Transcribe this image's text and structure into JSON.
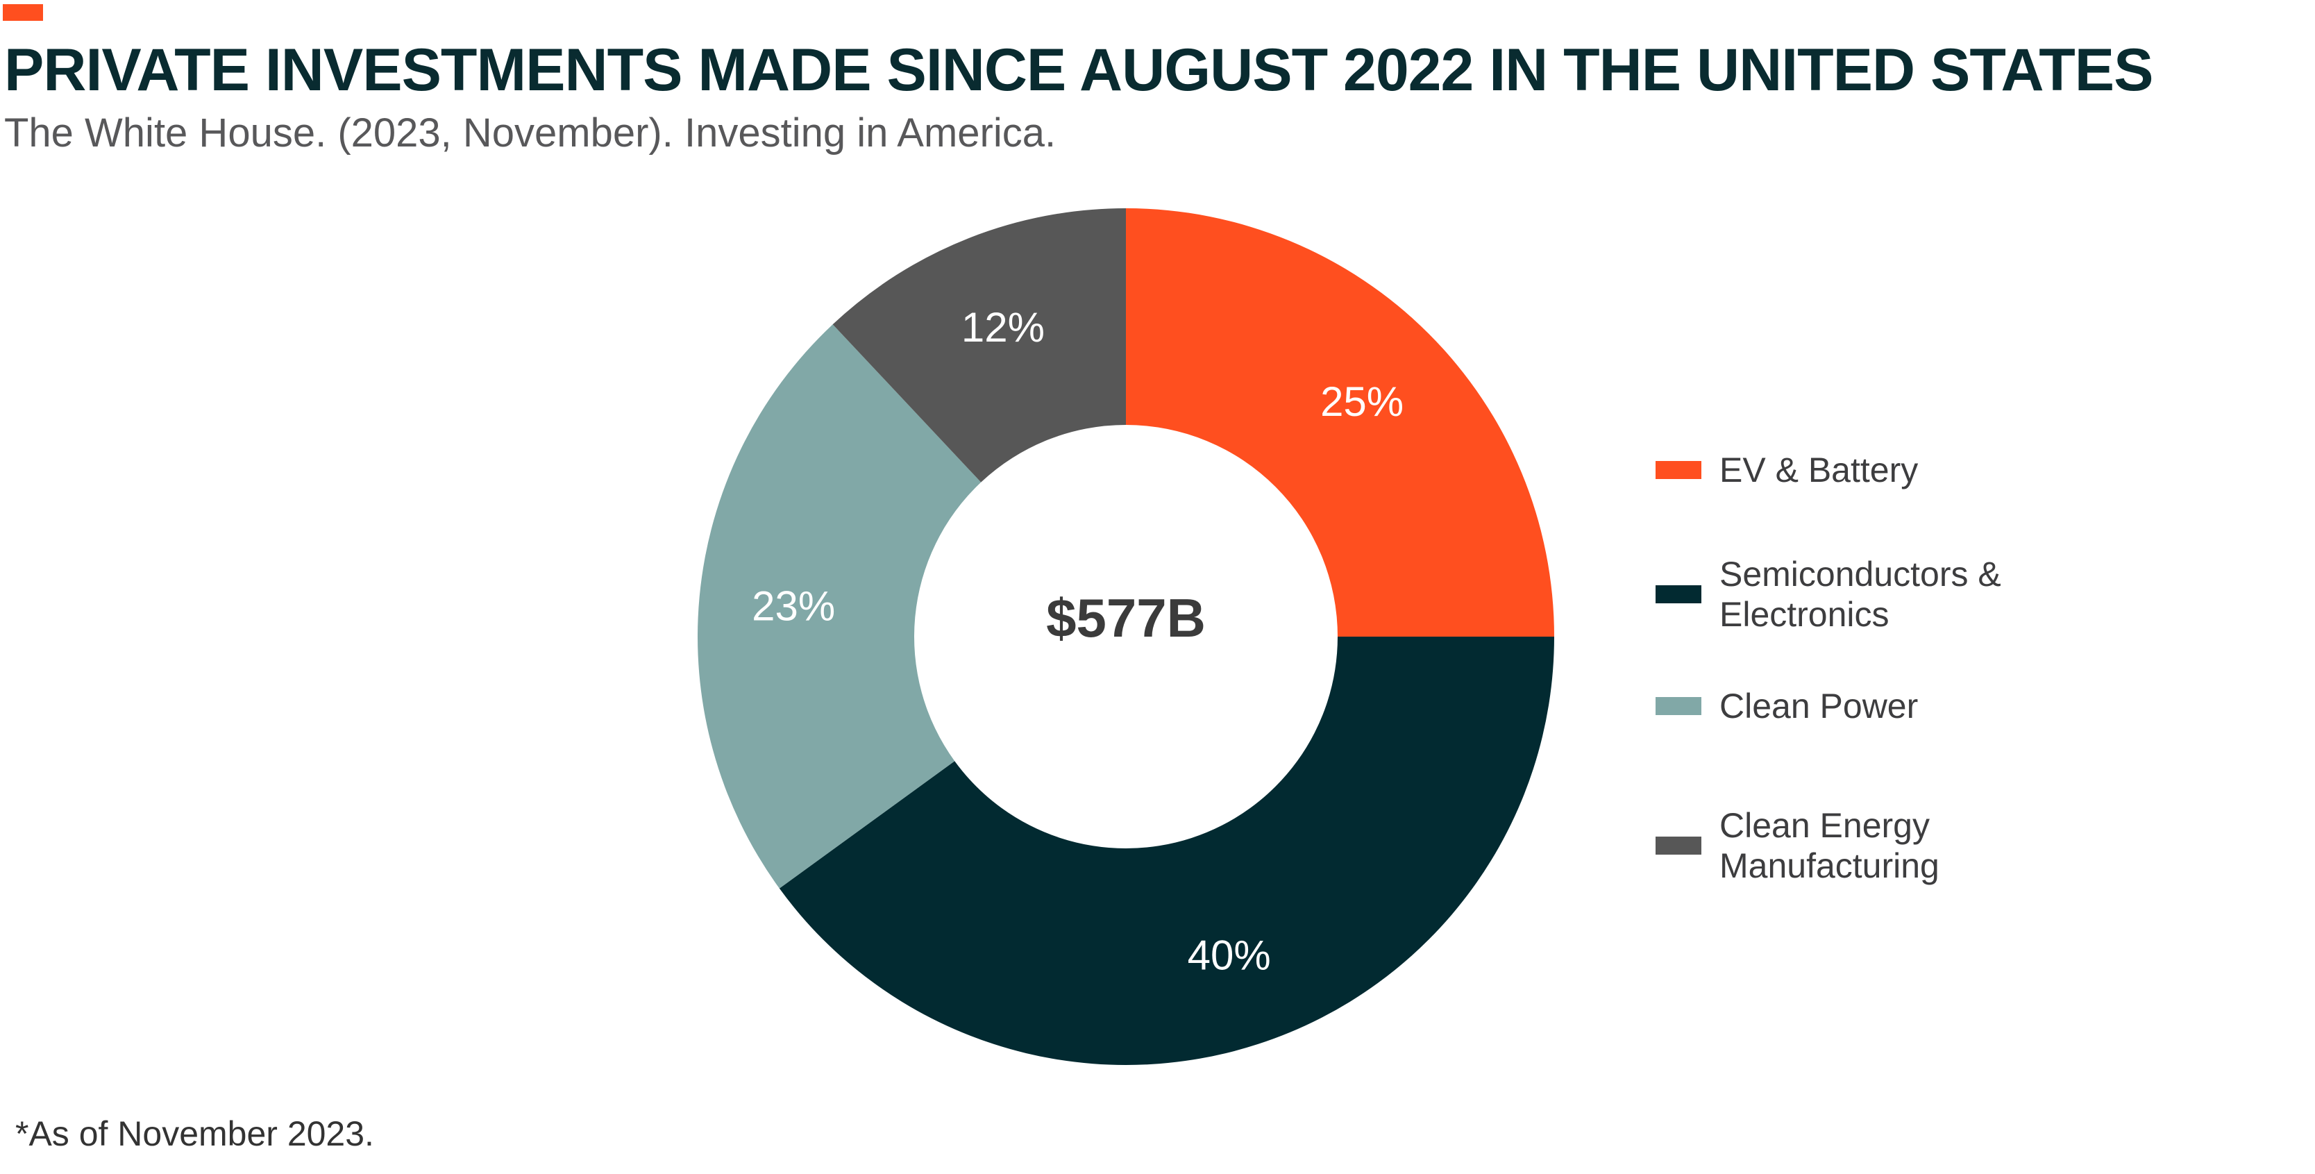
{
  "header": {
    "title": "PRIVATE INVESTMENTS MADE SINCE AUGUST 2022 IN THE UNITED STATES",
    "subtitle": "The White House. (2023, November). Investing in America."
  },
  "footnote": "*As of November 2023.",
  "colors": {
    "accent": "#ff4f1f",
    "ev_battery": "#ff4f1f",
    "semiconductors": "#022a31",
    "clean_power": "#81a8a7",
    "clean_energy_mfg": "#575757"
  },
  "chart_data": {
    "type": "pie",
    "style": "donut",
    "title": "PRIVATE INVESTMENTS MADE SINCE AUGUST 2022 IN THE UNITED STATES",
    "center_label": "$577B",
    "legend_position": "right",
    "unit": "%",
    "slices": [
      {
        "name": "EV & Battery",
        "value": 25,
        "label": "25%",
        "color": "#ff4f1f"
      },
      {
        "name": "Semiconductors & Electronics",
        "value": 40,
        "label": "40%",
        "color": "#022a31"
      },
      {
        "name": "Clean Power",
        "value": 23,
        "label": "23%",
        "color": "#81a8a7"
      },
      {
        "name": "Clean Energy Manufacturing",
        "value": 12,
        "label": "12%",
        "color": "#575757"
      }
    ]
  }
}
